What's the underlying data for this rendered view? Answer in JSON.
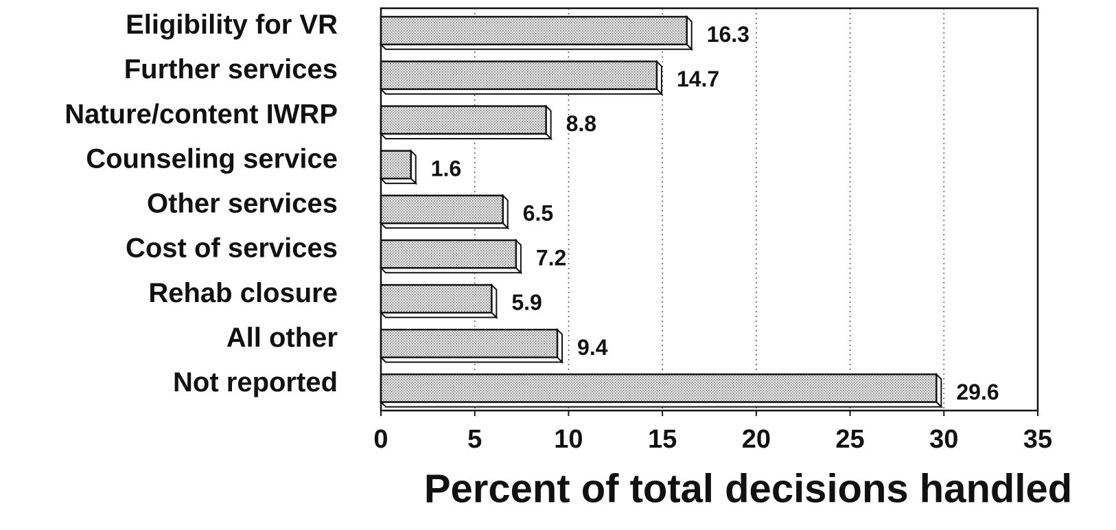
{
  "chart_data": {
    "type": "bar",
    "orientation": "horizontal",
    "categories": [
      "Eligibility for VR",
      "Further services",
      "Nature/content IWRP",
      "Counseling service",
      "Other services",
      "Cost of services",
      "Rehab closure",
      "All other",
      "Not reported"
    ],
    "values": [
      16.3,
      14.7,
      8.8,
      1.6,
      6.5,
      7.2,
      5.9,
      9.4,
      29.6
    ],
    "color": "#d8d8d8",
    "xlabel": "Percent of total decisions handled",
    "xlim": [
      0,
      35
    ],
    "xticks": [
      0,
      5,
      10,
      15,
      20,
      25,
      30,
      35
    ],
    "grid": true
  }
}
